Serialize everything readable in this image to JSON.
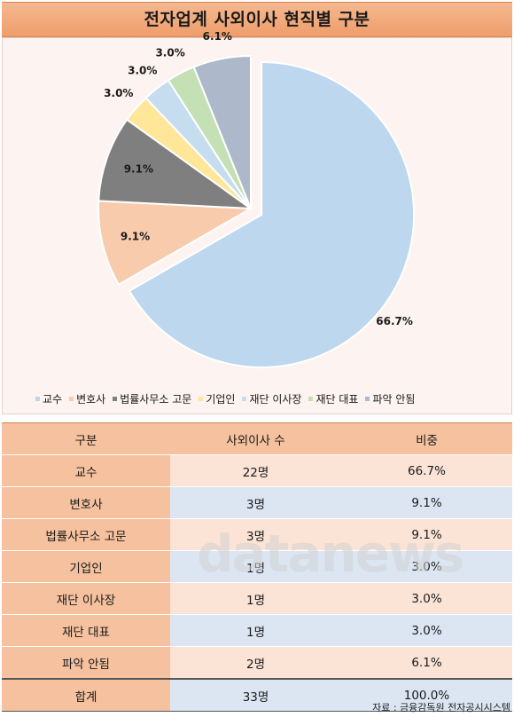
{
  "title": "전자업계 사외이사 현직별 구분",
  "chart_data": {
    "type": "pie",
    "title": "전자업계 사외이사 현직별 구분",
    "categories": [
      "교수",
      "변호사",
      "법률사무소 고문",
      "기업인",
      "재단 이사장",
      "재단 대표",
      "파악 안됨"
    ],
    "values": [
      66.7,
      9.1,
      9.1,
      3.0,
      3.0,
      3.0,
      6.1
    ],
    "labels": [
      "66.7%",
      "9.1%",
      "9.1%",
      "3.0%",
      "3.0%",
      "3.0%",
      "6.1%"
    ],
    "colors": [
      "#bdd7ee",
      "#f8cbad",
      "#7f7f7f",
      "#ffe699",
      "#c6ddf0",
      "#c5e0b4",
      "#adb9ca"
    ],
    "exploded": "교수",
    "legend_position": "bottom"
  },
  "table": {
    "headers": [
      "구분",
      "사외이사 수",
      "비중"
    ],
    "rows": [
      [
        "교수",
        "22명",
        "66.7%"
      ],
      [
        "변호사",
        "3명",
        "9.1%"
      ],
      [
        "법률사무소 고문",
        "3명",
        "9.1%"
      ],
      [
        "기업인",
        "1명",
        "3.0%"
      ],
      [
        "재단 이사장",
        "1명",
        "3.0%"
      ],
      [
        "재단 대표",
        "1명",
        "3.0%"
      ],
      [
        "파악 안됨",
        "2명",
        "6.1%"
      ]
    ],
    "total": [
      "합계",
      "33명",
      "100.0%"
    ]
  },
  "watermark": "datanews",
  "source": "자료 : 금융감독원 전자공시시스템"
}
